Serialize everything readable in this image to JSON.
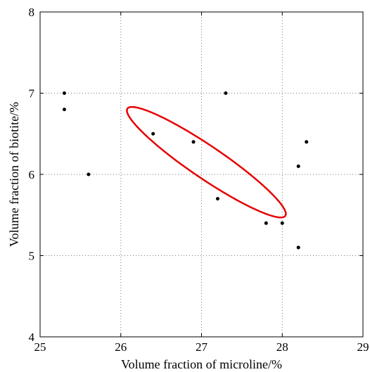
{
  "chart_data": {
    "type": "scatter",
    "title": "",
    "xlabel": "Volume fraction of microline/%",
    "ylabel": "Volume fraction of biotite/%",
    "xlim": [
      25,
      29
    ],
    "ylim": [
      4,
      8
    ],
    "x_ticks": [
      "25",
      "26",
      "27",
      "28",
      "29"
    ],
    "y_ticks": [
      "4",
      "5",
      "6",
      "7",
      "8"
    ],
    "grid": true,
    "grid_style": "dotted",
    "marker_color": "#000000",
    "series": [
      {
        "points": [
          {
            "x": 25.3,
            "y": 7.0
          },
          {
            "x": 25.3,
            "y": 6.8
          },
          {
            "x": 25.6,
            "y": 6.0
          },
          {
            "x": 26.4,
            "y": 6.5
          },
          {
            "x": 26.9,
            "y": 6.4
          },
          {
            "x": 27.2,
            "y": 5.7
          },
          {
            "x": 27.3,
            "y": 7.0
          },
          {
            "x": 27.8,
            "y": 5.4
          },
          {
            "x": 28.0,
            "y": 5.4
          },
          {
            "x": 28.2,
            "y": 6.1
          },
          {
            "x": 28.3,
            "y": 6.4
          },
          {
            "x": 28.2,
            "y": 5.1
          }
        ]
      }
    ],
    "confidence_ellipse": {
      "color": "#e60000",
      "center": {
        "x": 27.06,
        "y": 6.15
      },
      "semi_axis_major": 1.18,
      "semi_axis_minor": 0.2,
      "angle_deg": -34
    }
  }
}
